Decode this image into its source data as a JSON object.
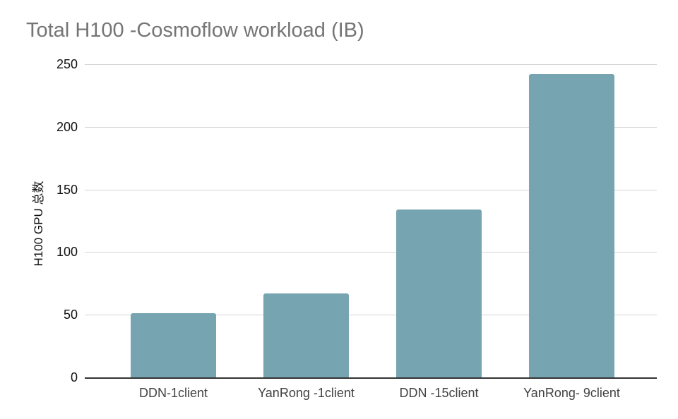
{
  "chart_data": {
    "type": "bar",
    "title": "Total H100 -Cosmoflow workload (IB)",
    "categories": [
      "DDN-1client",
      "YanRong -1client",
      "DDN -15client",
      "YanRong- 9client"
    ],
    "values": [
      51,
      67,
      134,
      242
    ],
    "xlabel": "",
    "ylabel": "H100 GPU 总数",
    "ylim": [
      0,
      250
    ],
    "yticks": [
      0,
      50,
      100,
      150,
      200,
      250
    ],
    "grid": true,
    "legend_position": "none",
    "colors": {
      "bar": "#76a4b0",
      "title_text": "#757575",
      "axis_line": "#333333",
      "gridline": "#d4d4d4",
      "y_tick_text": "#111111",
      "x_tick_text": "#424242",
      "background": "#ffffff"
    }
  }
}
